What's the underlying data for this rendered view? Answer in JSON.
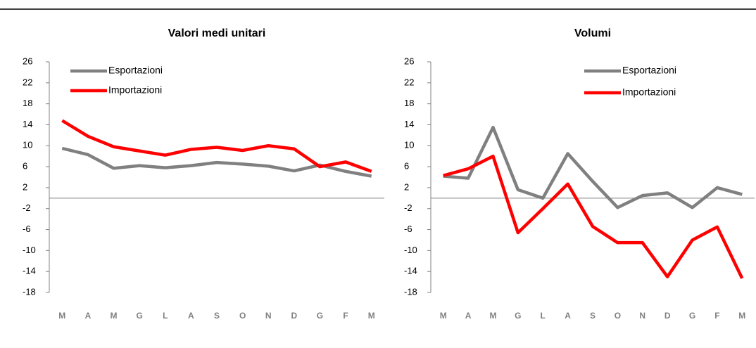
{
  "chart_data": [
    {
      "type": "line",
      "title": "Valori medi unitari",
      "categories": [
        "M",
        "A",
        "M",
        "G",
        "L",
        "A",
        "S",
        "O",
        "N",
        "D",
        "G",
        "F",
        "M"
      ],
      "series": [
        {
          "name": "Esportazioni",
          "color": "#808080",
          "values": [
            9.5,
            8.3,
            5.7,
            6.2,
            5.8,
            6.2,
            6.8,
            6.5,
            6.1,
            5.2,
            6.3,
            5.1,
            4.2
          ]
        },
        {
          "name": "Importazioni",
          "color": "#ff0000",
          "values": [
            14.8,
            11.8,
            9.8,
            9.0,
            8.2,
            9.3,
            9.7,
            9.1,
            10.0,
            9.4,
            6.0,
            6.9,
            5.1
          ]
        }
      ],
      "ylim": [
        -18,
        26
      ],
      "yticks": [
        26,
        22,
        18,
        14,
        10,
        6,
        2,
        -2,
        -6,
        -10,
        -14,
        -18
      ],
      "legend": "upper left"
    },
    {
      "type": "line",
      "title": "Volumi",
      "categories": [
        "M",
        "A",
        "M",
        "G",
        "L",
        "A",
        "S",
        "O",
        "N",
        "D",
        "G",
        "F",
        "M"
      ],
      "series": [
        {
          "name": "Esportazioni",
          "color": "#808080",
          "values": [
            4.2,
            3.8,
            13.5,
            1.6,
            0.0,
            8.5,
            3.2,
            -1.8,
            0.5,
            1.0,
            -1.8,
            2.0,
            0.7
          ]
        },
        {
          "name": "Importazioni",
          "color": "#ff0000",
          "values": [
            4.3,
            5.6,
            8.0,
            -6.6,
            -2.0,
            2.7,
            -5.4,
            -8.5,
            -8.5,
            -15.0,
            -8.0,
            -5.5,
            -15.3
          ]
        }
      ],
      "ylim": [
        -18,
        26
      ],
      "yticks": [
        26,
        22,
        18,
        14,
        10,
        6,
        2,
        -2,
        -6,
        -10,
        -14,
        -18
      ],
      "legend": "upper center"
    }
  ]
}
